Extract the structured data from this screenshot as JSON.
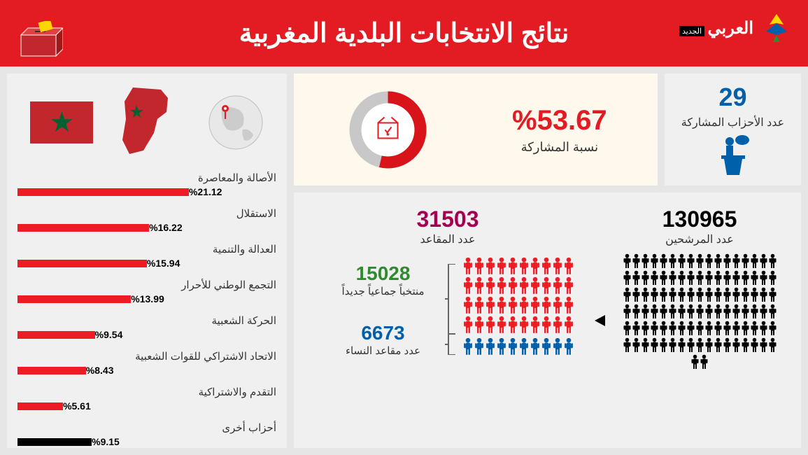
{
  "header": {
    "title": "نتائج الانتخابات البلدية المغربية",
    "logo_text": "العربي",
    "logo_sub": "الجديد"
  },
  "colors": {
    "primary_red": "#e31b23",
    "morocco_red": "#c1272d",
    "morocco_green": "#006233",
    "blue": "#0060aa",
    "maroon": "#a4004f",
    "green": "#2e8b2e",
    "dark": "#333333",
    "black": "#000000",
    "cream": "#fef9ec",
    "gray_bg": "#f0f0f0",
    "bar_red": "#ed1c24",
    "bar_black": "#000000",
    "pie_gray": "#c8c8c8"
  },
  "participation": {
    "pct": 53.67,
    "pct_text": "%53.67",
    "label": "نسبة المشاركة",
    "pie_fill": "#d8131a",
    "pie_rest": "#c8c8c8",
    "pie_bg": "#fff"
  },
  "parties": {
    "count": "29",
    "label": "عدد الأحزاب المشاركة"
  },
  "candidates": {
    "count": "130965",
    "label": "عدد المرشحين",
    "person_color": "#000000",
    "rows": 8,
    "cols": 13
  },
  "seats": {
    "count": "31503",
    "label": "عدد المقاعد",
    "new_elected": {
      "count": "15028",
      "label": "منتخباً جماعياً جديداً",
      "color": "#2e8b2e"
    },
    "women": {
      "count": "6673",
      "label": "عدد مقاعد النساء",
      "color": "#0060aa"
    },
    "red_rows": 4,
    "red_cols": 10,
    "red_color": "#ed1c24",
    "blue_rows": 1,
    "blue_cols": 10,
    "blue_color": "#0060aa"
  },
  "bars": {
    "max_pct": 25,
    "items": [
      {
        "label": "الأصالة والمعاصرة",
        "pct": 21.12,
        "pct_text": "%21.12",
        "color": "#ed1c24"
      },
      {
        "label": "الاستقلال",
        "pct": 16.22,
        "pct_text": "%16.22",
        "color": "#ed1c24"
      },
      {
        "label": "العدالة والتنمية",
        "pct": 15.94,
        "pct_text": "%15.94",
        "color": "#ed1c24"
      },
      {
        "label": "التجمع الوطني للأحرار",
        "pct": 13.99,
        "pct_text": "%13.99",
        "color": "#ed1c24"
      },
      {
        "label": "الحركة الشعبية",
        "pct": 9.54,
        "pct_text": "%9.54",
        "color": "#ed1c24"
      },
      {
        "label": "الاتحاد الاشتراكي للقوات الشعبية",
        "pct": 8.43,
        "pct_text": "%8.43",
        "color": "#ed1c24"
      },
      {
        "label": "التقدم والاشتراكية",
        "pct": 5.61,
        "pct_text": "%5.61",
        "color": "#ed1c24"
      },
      {
        "label": "أحزاب أخرى",
        "pct": 9.15,
        "pct_text": "%9.15",
        "color": "#000000"
      }
    ]
  }
}
